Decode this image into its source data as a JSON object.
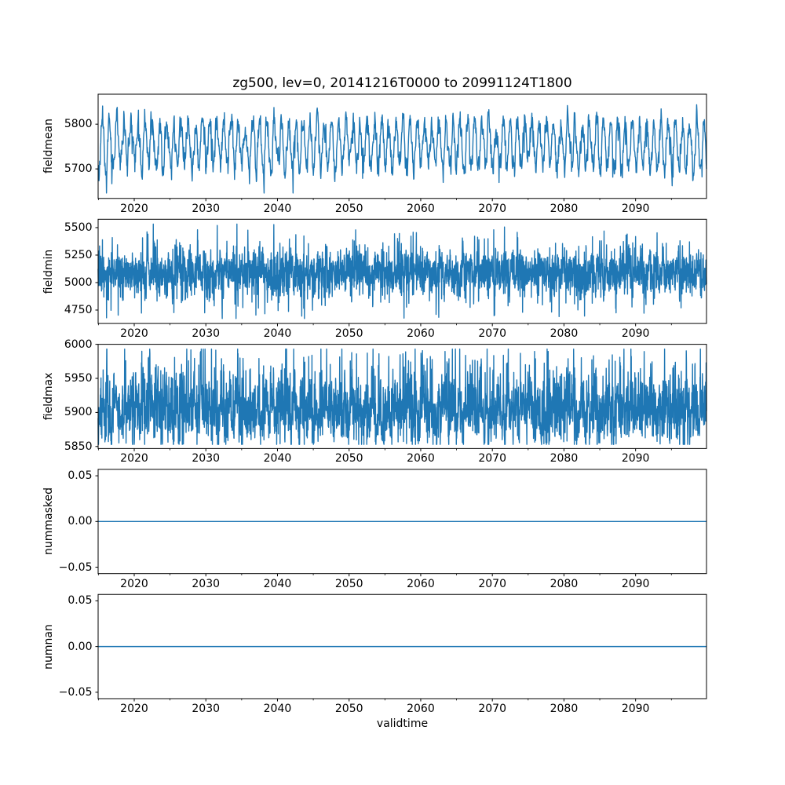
{
  "figure": {
    "title": "zg500, lev=0, 20141216T0000 to 20991124T1800",
    "xlabel": "validtime",
    "background": "#ffffff",
    "line_color": "#1f77b4",
    "axis_color": "#000000",
    "text_color": "#000000"
  },
  "chart_data": [
    {
      "type": "line",
      "ylabel": "fieldmean",
      "xlim": [
        2014.96,
        2099.9
      ],
      "ylim": [
        5634,
        5867
      ],
      "yticks": [
        5700,
        5800
      ],
      "ytick_labels": [
        "5700",
        "5800"
      ],
      "xticks": [
        2020,
        2030,
        2040,
        2050,
        2060,
        2070,
        2080,
        2090
      ],
      "xtick_labels": [
        "2020",
        "2030",
        "2040",
        "2050",
        "2060",
        "2070",
        "2080",
        "2090"
      ],
      "xminor_step": 5,
      "grid": false,
      "legend": false,
      "series": [
        {
          "name": "fieldmean",
          "color": "#1f77b4",
          "summary": {
            "mean": 5757,
            "approx_min": 5646,
            "approx_max": 5856,
            "pattern": "annual oscillation with noise"
          },
          "synth": {
            "seed": 11,
            "points_per_year": 24,
            "baseline": 5755,
            "seasonal_amp": 50,
            "seasonal_phase": 0.3,
            "noise_sigma": 16,
            "ar": 0.5,
            "spike_prob": 0.015,
            "spike_min": 20,
            "spike_max": 60,
            "spike_sign": -1,
            "clamp": [
              5646,
              5857
            ]
          }
        }
      ]
    },
    {
      "type": "line",
      "ylabel": "fieldmin",
      "xlim": [
        2014.96,
        2099.9
      ],
      "ylim": [
        4628,
        5576
      ],
      "yticks": [
        4750,
        5000,
        5250,
        5500
      ],
      "ytick_labels": [
        "4750",
        "5000",
        "5250",
        "5500"
      ],
      "xticks": [
        2020,
        2030,
        2040,
        2050,
        2060,
        2070,
        2080,
        2090
      ],
      "xtick_labels": [
        "2020",
        "2030",
        "2040",
        "2050",
        "2060",
        "2070",
        "2080",
        "2090"
      ],
      "xminor_step": 5,
      "grid": false,
      "legend": false,
      "series": [
        {
          "name": "fieldmin",
          "color": "#1f77b4",
          "summary": {
            "mean": 5090,
            "approx_min": 4673,
            "approx_max": 5532,
            "pattern": "dense high-frequency noise band"
          },
          "synth": {
            "seed": 22,
            "points_per_year": 40,
            "baseline": 5090,
            "seasonal_amp": 35,
            "seasonal_phase": 0.6,
            "noise_sigma": 90,
            "ar": 0.2,
            "spike_prob": 0.12,
            "spike_min": 80,
            "spike_max": 320,
            "spike_sign": 0,
            "clamp": [
              4673,
              5532
            ]
          }
        }
      ]
    },
    {
      "type": "line",
      "ylabel": "fieldmax",
      "xlim": [
        2014.96,
        2099.9
      ],
      "ylim": [
        5847,
        6000
      ],
      "yticks": [
        5850,
        5900,
        5950,
        6000
      ],
      "ytick_labels": [
        "5850",
        "5900",
        "5950",
        "6000"
      ],
      "xticks": [
        2020,
        2030,
        2040,
        2050,
        2060,
        2070,
        2080,
        2090
      ],
      "xtick_labels": [
        "2020",
        "2030",
        "2040",
        "2050",
        "2060",
        "2070",
        "2080",
        "2090"
      ],
      "xminor_step": 5,
      "grid": false,
      "legend": false,
      "series": [
        {
          "name": "fieldmax",
          "color": "#1f77b4",
          "summary": {
            "mean": 5905,
            "approx_min": 5853,
            "approx_max": 5993,
            "pattern": "noisy band with upward spikes"
          },
          "synth": {
            "seed": 33,
            "points_per_year": 40,
            "baseline": 5901,
            "seasonal_amp": 10,
            "seasonal_phase": 0.1,
            "noise_sigma": 23,
            "ar": 0.35,
            "spike_prob": 0.12,
            "spike_min": 25,
            "spike_max": 80,
            "spike_sign": 1,
            "clamp": [
              5853,
              5993
            ]
          }
        }
      ]
    },
    {
      "type": "line",
      "ylabel": "nummasked",
      "xlim": [
        2014.96,
        2099.9
      ],
      "ylim": [
        -0.057,
        0.057
      ],
      "yticks": [
        -0.05,
        0.0,
        0.05
      ],
      "ytick_labels": [
        "−0.05",
        "0.00",
        "0.05"
      ],
      "xticks": [
        2020,
        2030,
        2040,
        2050,
        2060,
        2070,
        2080,
        2090
      ],
      "xtick_labels": [
        "2020",
        "2030",
        "2040",
        "2050",
        "2060",
        "2070",
        "2080",
        "2090"
      ],
      "xminor_step": 5,
      "grid": false,
      "legend": false,
      "series": [
        {
          "name": "nummasked",
          "color": "#1f77b4",
          "summary": {
            "mean": 0,
            "approx_min": 0,
            "approx_max": 0,
            "pattern": "constant zero"
          },
          "constant": 0
        }
      ]
    },
    {
      "type": "line",
      "ylabel": "numnan",
      "xlim": [
        2014.96,
        2099.9
      ],
      "ylim": [
        -0.057,
        0.057
      ],
      "yticks": [
        -0.05,
        0.0,
        0.05
      ],
      "ytick_labels": [
        "−0.05",
        "0.00",
        "0.05"
      ],
      "xticks": [
        2020,
        2030,
        2040,
        2050,
        2060,
        2070,
        2080,
        2090
      ],
      "xtick_labels": [
        "2020",
        "2030",
        "2040",
        "2050",
        "2060",
        "2070",
        "2080",
        "2090"
      ],
      "xminor_step": 5,
      "grid": false,
      "legend": false,
      "series": [
        {
          "name": "numnan",
          "color": "#1f77b4",
          "summary": {
            "mean": 0,
            "approx_min": 0,
            "approx_max": 0,
            "pattern": "constant zero"
          },
          "constant": 0
        }
      ]
    }
  ]
}
